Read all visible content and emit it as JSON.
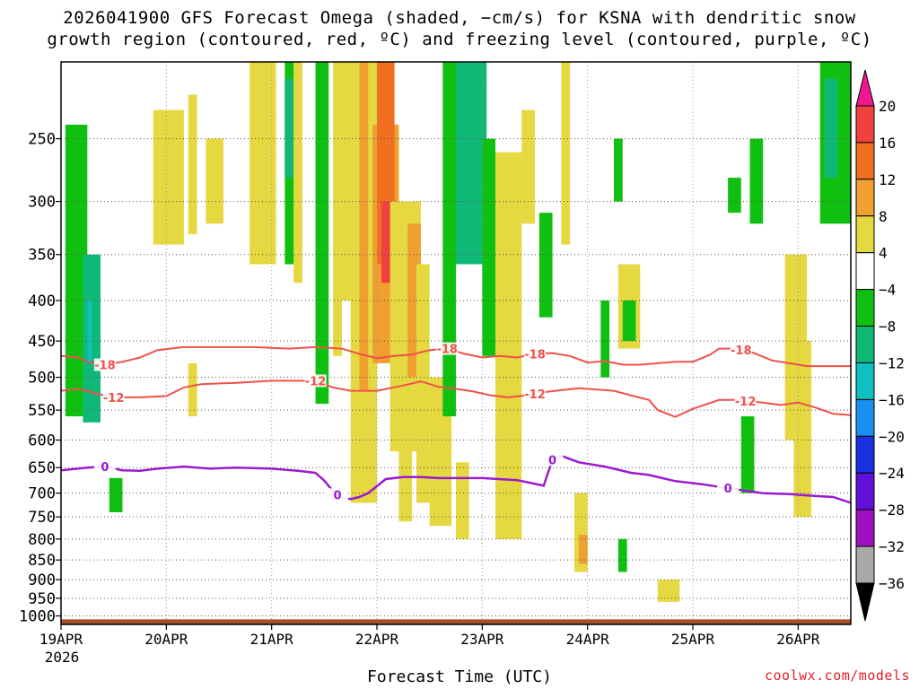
{
  "title": {
    "line1": "2026041900 GFS Forecast Omega (shaded, −cm/s) for KSNA with dendritic snow",
    "line2": "growth region (contoured, red, ºC) and freezing level (contoured, purple, ºC)"
  },
  "credit": "coolwx.com/models",
  "colors": {
    "isotherm_red": "#f0504a",
    "freezing_purple": "#9a1ad0",
    "ground": "#a0522d",
    "grid": "#555555"
  },
  "chart_data": {
    "type": "heatmap",
    "xlabel": "Forecast Time (UTC)",
    "ylabel": "",
    "x_unit": "hours since 2026-04-19 00Z",
    "xlim": [
      0,
      180
    ],
    "x_ticks": [
      {
        "h": 0,
        "label": "19APR",
        "sub": "2026"
      },
      {
        "h": 24,
        "label": "20APR"
      },
      {
        "h": 48,
        "label": "21APR"
      },
      {
        "h": 72,
        "label": "22APR"
      },
      {
        "h": 96,
        "label": "23APR"
      },
      {
        "h": 120,
        "label": "24APR"
      },
      {
        "h": 144,
        "label": "25APR"
      },
      {
        "h": 168,
        "label": "26APR"
      }
    ],
    "y_unit": "hPa",
    "ylim": [
      1025,
      200
    ],
    "y_ticks": [
      250,
      300,
      350,
      400,
      450,
      500,
      550,
      600,
      650,
      700,
      750,
      800,
      850,
      900,
      950,
      1000
    ],
    "colorbar": {
      "labels": [
        "20",
        "16",
        "12",
        "8",
        "4",
        "−4",
        "−8",
        "−12",
        "−16",
        "−20",
        "−24",
        "−28",
        "−32",
        "−36"
      ],
      "bins": [
        {
          "lo": 16,
          "hi": 20,
          "color": "#f04040"
        },
        {
          "lo": 12,
          "hi": 16,
          "color": "#f07020"
        },
        {
          "lo": 8,
          "hi": 12,
          "color": "#f0a030"
        },
        {
          "lo": 4,
          "hi": 8,
          "color": "#e6d840"
        },
        {
          "lo": -4,
          "hi": 4,
          "color": "#ffffff"
        },
        {
          "lo": -8,
          "hi": -4,
          "color": "#10c010"
        },
        {
          "lo": -12,
          "hi": -8,
          "color": "#10b878"
        },
        {
          "lo": -16,
          "hi": -12,
          "color": "#10c0c0"
        },
        {
          "lo": -20,
          "hi": -16,
          "color": "#1890f0"
        },
        {
          "lo": -24,
          "hi": -20,
          "color": "#1830e0"
        },
        {
          "lo": -28,
          "hi": -24,
          "color": "#6010d8"
        },
        {
          "lo": -32,
          "hi": -28,
          "color": "#a010c0"
        },
        {
          "lo": -36,
          "hi": -32,
          "color": "#a8a8a8"
        }
      ],
      "top_arrow_color": "#f01890",
      "bottom_arrow_color": "#000000"
    },
    "omega_cells": [
      {
        "t0": 1,
        "t1": 6,
        "p0": 240,
        "p1": 560,
        "v": -6
      },
      {
        "t0": 5,
        "t1": 9,
        "p0": 350,
        "p1": 570,
        "v": -10
      },
      {
        "t0": 6,
        "t1": 7,
        "p0": 400,
        "p1": 480,
        "v": -14
      },
      {
        "t0": 11,
        "t1": 14,
        "p0": 670,
        "p1": 740,
        "v": -6
      },
      {
        "t0": 21,
        "t1": 28,
        "p0": 230,
        "p1": 340,
        "v": 5
      },
      {
        "t0": 29,
        "t1": 31,
        "p0": 220,
        "p1": 330,
        "v": 5
      },
      {
        "t0": 33,
        "t1": 37,
        "p0": 250,
        "p1": 320,
        "v": 5
      },
      {
        "t0": 43,
        "t1": 49,
        "p0": 200,
        "p1": 360,
        "v": 5
      },
      {
        "t0": 29,
        "t1": 31,
        "p0": 480,
        "p1": 560,
        "v": 5
      },
      {
        "t0": 51,
        "t1": 54,
        "p0": 200,
        "p1": 360,
        "v": -8
      },
      {
        "t0": 51,
        "t1": 53,
        "p0": 210,
        "p1": 280,
        "v": -12
      },
      {
        "t0": 53,
        "t1": 55,
        "p0": 200,
        "p1": 380,
        "v": 5
      },
      {
        "t0": 58,
        "t1": 61,
        "p0": 200,
        "p1": 540,
        "v": -6
      },
      {
        "t0": 62,
        "t1": 64,
        "p0": 200,
        "p1": 470,
        "v": 5
      },
      {
        "t0": 64,
        "t1": 75,
        "p0": 200,
        "p1": 400,
        "v": 6
      },
      {
        "t0": 66,
        "t1": 72,
        "p0": 200,
        "p1": 720,
        "v": 6
      },
      {
        "t0": 68,
        "t1": 70,
        "p0": 200,
        "p1": 520,
        "v": 10
      },
      {
        "t0": 71,
        "t1": 77,
        "p0": 240,
        "p1": 480,
        "v": 10
      },
      {
        "t0": 72,
        "t1": 76,
        "p0": 200,
        "p1": 360,
        "v": 13
      },
      {
        "t0": 73,
        "t1": 75,
        "p0": 300,
        "p1": 380,
        "v": 17
      },
      {
        "t0": 75,
        "t1": 82,
        "p0": 300,
        "p1": 620,
        "v": 6
      },
      {
        "t0": 77,
        "t1": 80,
        "p0": 400,
        "p1": 760,
        "v": 6
      },
      {
        "t0": 79,
        "t1": 82,
        "p0": 320,
        "p1": 500,
        "v": 10
      },
      {
        "t0": 81,
        "t1": 84,
        "p0": 360,
        "p1": 720,
        "v": 5
      },
      {
        "t0": 84,
        "t1": 89,
        "p0": 500,
        "p1": 770,
        "v": 5
      },
      {
        "t0": 90,
        "t1": 93,
        "p0": 640,
        "p1": 800,
        "v": 5
      },
      {
        "t0": 87,
        "t1": 90,
        "p0": 200,
        "p1": 560,
        "v": -6
      },
      {
        "t0": 90,
        "t1": 97,
        "p0": 200,
        "p1": 360,
        "v": -10
      },
      {
        "t0": 92,
        "t1": 96,
        "p0": 210,
        "p1": 300,
        "v": -12
      },
      {
        "t0": 96,
        "t1": 99,
        "p0": 250,
        "p1": 470,
        "v": -6
      },
      {
        "t0": 99,
        "t1": 105,
        "p0": 260,
        "p1": 800,
        "v": 5
      },
      {
        "t0": 102,
        "t1": 104,
        "p0": 270,
        "p1": 520,
        "v": 5
      },
      {
        "t0": 105,
        "t1": 108,
        "p0": 230,
        "p1": 320,
        "v": 5
      },
      {
        "t0": 109,
        "t1": 112,
        "p0": 310,
        "p1": 420,
        "v": -6
      },
      {
        "t0": 114,
        "t1": 116,
        "p0": 200,
        "p1": 340,
        "v": 5
      },
      {
        "t0": 117,
        "t1": 120,
        "p0": 700,
        "p1": 880,
        "v": 6
      },
      {
        "t0": 118,
        "t1": 120,
        "p0": 790,
        "p1": 860,
        "v": 10
      },
      {
        "t0": 123,
        "t1": 125,
        "p0": 400,
        "p1": 500,
        "v": -6
      },
      {
        "t0": 126,
        "t1": 128,
        "p0": 250,
        "p1": 300,
        "v": -6
      },
      {
        "t0": 127,
        "t1": 132,
        "p0": 360,
        "p1": 460,
        "v": 5
      },
      {
        "t0": 128,
        "t1": 131,
        "p0": 400,
        "p1": 450,
        "v": -6
      },
      {
        "t0": 127,
        "t1": 129,
        "p0": 800,
        "p1": 880,
        "v": -6
      },
      {
        "t0": 136,
        "t1": 141,
        "p0": 900,
        "p1": 960,
        "v": 5
      },
      {
        "t0": 152,
        "t1": 155,
        "p0": 280,
        "p1": 310,
        "v": -6
      },
      {
        "t0": 157,
        "t1": 160,
        "p0": 250,
        "p1": 320,
        "v": -6
      },
      {
        "t0": 155,
        "t1": 158,
        "p0": 560,
        "p1": 700,
        "v": -8
      },
      {
        "t0": 165,
        "t1": 170,
        "p0": 350,
        "p1": 600,
        "v": 5
      },
      {
        "t0": 167,
        "t1": 171,
        "p0": 450,
        "p1": 750,
        "v": 5
      },
      {
        "t0": 173,
        "t1": 181,
        "p0": 200,
        "p1": 320,
        "v": -8
      },
      {
        "t0": 174,
        "t1": 177,
        "p0": 210,
        "p1": 280,
        "v": -12
      }
    ],
    "isotherm_m18": {
      "label": "-18",
      "color": "#f0504a",
      "label_at": [
        10,
        88,
        108,
        155
      ],
      "points": [
        [
          0,
          470
        ],
        [
          4,
          472
        ],
        [
          6,
          478
        ],
        [
          10,
          482
        ],
        [
          14,
          478
        ],
        [
          18,
          472
        ],
        [
          22,
          462
        ],
        [
          28,
          458
        ],
        [
          36,
          458
        ],
        [
          44,
          458
        ],
        [
          52,
          460
        ],
        [
          58,
          458
        ],
        [
          64,
          460
        ],
        [
          68,
          467
        ],
        [
          72,
          473
        ],
        [
          76,
          470
        ],
        [
          80,
          468
        ],
        [
          84,
          462
        ],
        [
          88,
          460
        ],
        [
          92,
          467
        ],
        [
          96,
          472
        ],
        [
          100,
          470
        ],
        [
          104,
          472
        ],
        [
          108,
          467
        ],
        [
          112,
          466
        ],
        [
          116,
          470
        ],
        [
          120,
          479
        ],
        [
          124,
          477
        ],
        [
          128,
          482
        ],
        [
          132,
          482
        ],
        [
          136,
          480
        ],
        [
          140,
          478
        ],
        [
          144,
          478
        ],
        [
          148,
          468
        ],
        [
          150,
          460
        ],
        [
          154,
          460
        ],
        [
          158,
          466
        ],
        [
          162,
          476
        ],
        [
          166,
          480
        ],
        [
          170,
          484
        ],
        [
          174,
          484
        ],
        [
          180,
          484
        ]
      ]
    },
    "isotherm_m12": {
      "label": "-12",
      "color": "#f0504a",
      "label_at": [
        12,
        58,
        108,
        156
      ],
      "points": [
        [
          0,
          520
        ],
        [
          4,
          517
        ],
        [
          8,
          524
        ],
        [
          12,
          530
        ],
        [
          18,
          530
        ],
        [
          24,
          528
        ],
        [
          28,
          515
        ],
        [
          32,
          510
        ],
        [
          40,
          508
        ],
        [
          48,
          505
        ],
        [
          54,
          505
        ],
        [
          58,
          505
        ],
        [
          62,
          515
        ],
        [
          66,
          520
        ],
        [
          72,
          520
        ],
        [
          78,
          512
        ],
        [
          82,
          506
        ],
        [
          86,
          514
        ],
        [
          90,
          517
        ],
        [
          94,
          521
        ],
        [
          98,
          527
        ],
        [
          102,
          530
        ],
        [
          106,
          527
        ],
        [
          110,
          522
        ],
        [
          114,
          519
        ],
        [
          118,
          516
        ],
        [
          122,
          518
        ],
        [
          126,
          520
        ],
        [
          130,
          527
        ],
        [
          134,
          534
        ],
        [
          136,
          550
        ],
        [
          140,
          561
        ],
        [
          144,
          548
        ],
        [
          150,
          534
        ],
        [
          154,
          534
        ],
        [
          160,
          538
        ],
        [
          164,
          542
        ],
        [
          168,
          538
        ],
        [
          172,
          546
        ],
        [
          176,
          556
        ],
        [
          180,
          558
        ]
      ]
    },
    "freezing_level": {
      "label": "0",
      "color": "#9a1ad0",
      "label_at": [
        10,
        63,
        112,
        152
      ],
      "points": [
        [
          0,
          655
        ],
        [
          6,
          650
        ],
        [
          10,
          648
        ],
        [
          14,
          655
        ],
        [
          18,
          656
        ],
        [
          22,
          652
        ],
        [
          28,
          648
        ],
        [
          34,
          652
        ],
        [
          40,
          650
        ],
        [
          48,
          652
        ],
        [
          54,
          656
        ],
        [
          58,
          660
        ],
        [
          60,
          675
        ],
        [
          62,
          696
        ],
        [
          64,
          710
        ],
        [
          66,
          712
        ],
        [
          68,
          708
        ],
        [
          70,
          700
        ],
        [
          74,
          672
        ],
        [
          78,
          668
        ],
        [
          82,
          668
        ],
        [
          86,
          670
        ],
        [
          90,
          670
        ],
        [
          96,
          670
        ],
        [
          104,
          674
        ],
        [
          110,
          685
        ],
        [
          112,
          635
        ],
        [
          114,
          628
        ],
        [
          118,
          640
        ],
        [
          124,
          648
        ],
        [
          130,
          660
        ],
        [
          134,
          664
        ],
        [
          140,
          676
        ],
        [
          146,
          682
        ],
        [
          152,
          690
        ],
        [
          160,
          700
        ],
        [
          166,
          702
        ],
        [
          172,
          706
        ],
        [
          176,
          708
        ],
        [
          180,
          720
        ]
      ]
    },
    "ground": {
      "from_p": 1025,
      "to_p": 1010
    }
  }
}
